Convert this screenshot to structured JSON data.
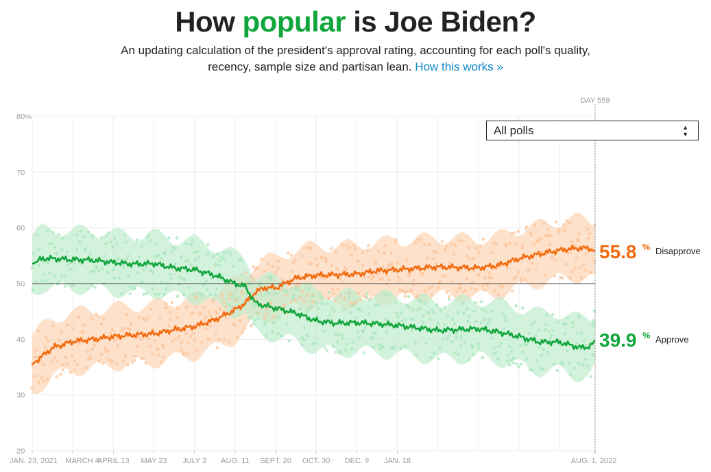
{
  "header": {
    "title_before": "How ",
    "title_accent": "popular",
    "title_after": " is Joe Biden?",
    "subtitle_line1": "An updating calculation of the president's approval rating, accounting for each poll's quality,",
    "subtitle_line2": "recency, sample size and partisan lean.",
    "link_text": "How this works »"
  },
  "controls": {
    "poll_filter_selected": "All polls"
  },
  "colors": {
    "approve": "#11a63c",
    "disapprove": "#f26b0f",
    "approve_band": "#bfeccd",
    "disapprove_band": "#fdd9bd",
    "title_accent": "#11a63c",
    "link": "#0f86c9"
  },
  "chart_data": {
    "type": "line",
    "day_marker": "DAY 559",
    "ylim": [
      20,
      80
    ],
    "y_ticks": [
      "20",
      "30",
      "40",
      "50",
      "60",
      "70",
      "80%"
    ],
    "x_tick_labels": [
      "JAN. 23, 2021",
      "MARCH 4",
      "APRIL 13",
      "MAY 23",
      "JULY 2",
      "AUG. 11",
      "SEPT. 20",
      "OCT. 30",
      "DEC. 9",
      "JAN. 18",
      "AUG. 1, 2022"
    ],
    "x_days": [
      0,
      40,
      80,
      120,
      160,
      200,
      240,
      280,
      320,
      360,
      555
    ],
    "reference_line": 50,
    "series": [
      {
        "name": "Approve",
        "latest_value": "39.9",
        "pct_sign": "%",
        "days": [
          0,
          10,
          20,
          40,
          60,
          80,
          100,
          120,
          140,
          160,
          180,
          200,
          210,
          220,
          230,
          240,
          260,
          280,
          300,
          320,
          340,
          360,
          400,
          440,
          460,
          480,
          500,
          520,
          540,
          550,
          555
        ],
        "values": [
          53.5,
          54.5,
          54.5,
          54.3,
          54.2,
          53.8,
          53.5,
          53.6,
          52.8,
          52.5,
          51.5,
          50.0,
          49.5,
          46.5,
          46.0,
          45.6,
          44.7,
          43.3,
          42.9,
          43.0,
          42.8,
          42.5,
          41.6,
          41.9,
          41.3,
          40.5,
          39.5,
          39.5,
          38.5,
          38.7,
          39.9
        ]
      },
      {
        "name": "Disapprove",
        "latest_value": "55.8",
        "pct_sign": "%",
        "days": [
          0,
          10,
          20,
          40,
          60,
          80,
          100,
          120,
          140,
          160,
          180,
          200,
          210,
          220,
          230,
          240,
          260,
          280,
          300,
          320,
          340,
          360,
          400,
          440,
          460,
          480,
          500,
          520,
          540,
          550,
          555
        ],
        "values": [
          35.5,
          37.0,
          38.5,
          39.6,
          40.0,
          40.5,
          40.8,
          41.0,
          41.7,
          42.3,
          43.5,
          45.3,
          46.5,
          48.5,
          49.3,
          49.2,
          51.0,
          51.5,
          51.6,
          51.7,
          52.3,
          52.5,
          53.0,
          52.8,
          53.3,
          54.5,
          55.3,
          56.0,
          56.4,
          56.3,
          55.8
        ]
      }
    ]
  }
}
